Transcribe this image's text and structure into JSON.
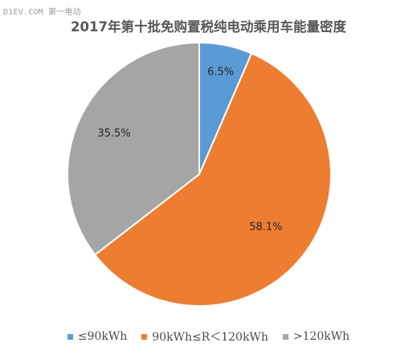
{
  "watermark": "D1EV.COM 第一电动",
  "chart_data": {
    "type": "pie",
    "title": "2017年第十批免购置税纯电动乘用车能量密度",
    "slices": [
      {
        "label": "≤90kWh",
        "value": 6.5,
        "value_label": "6.5%",
        "color": "#5b9bd5"
      },
      {
        "label": "90kWh≤R＜120kWh",
        "value": 58.1,
        "value_label": "58.1%",
        "color": "#ed7d31"
      },
      {
        "label": ">120kWh",
        "value": 35.5,
        "value_label": "35.5%",
        "color": "#a5a5a5"
      }
    ],
    "start_angle": "12 o'clock",
    "direction": "clockwise",
    "legend_position": "bottom"
  }
}
